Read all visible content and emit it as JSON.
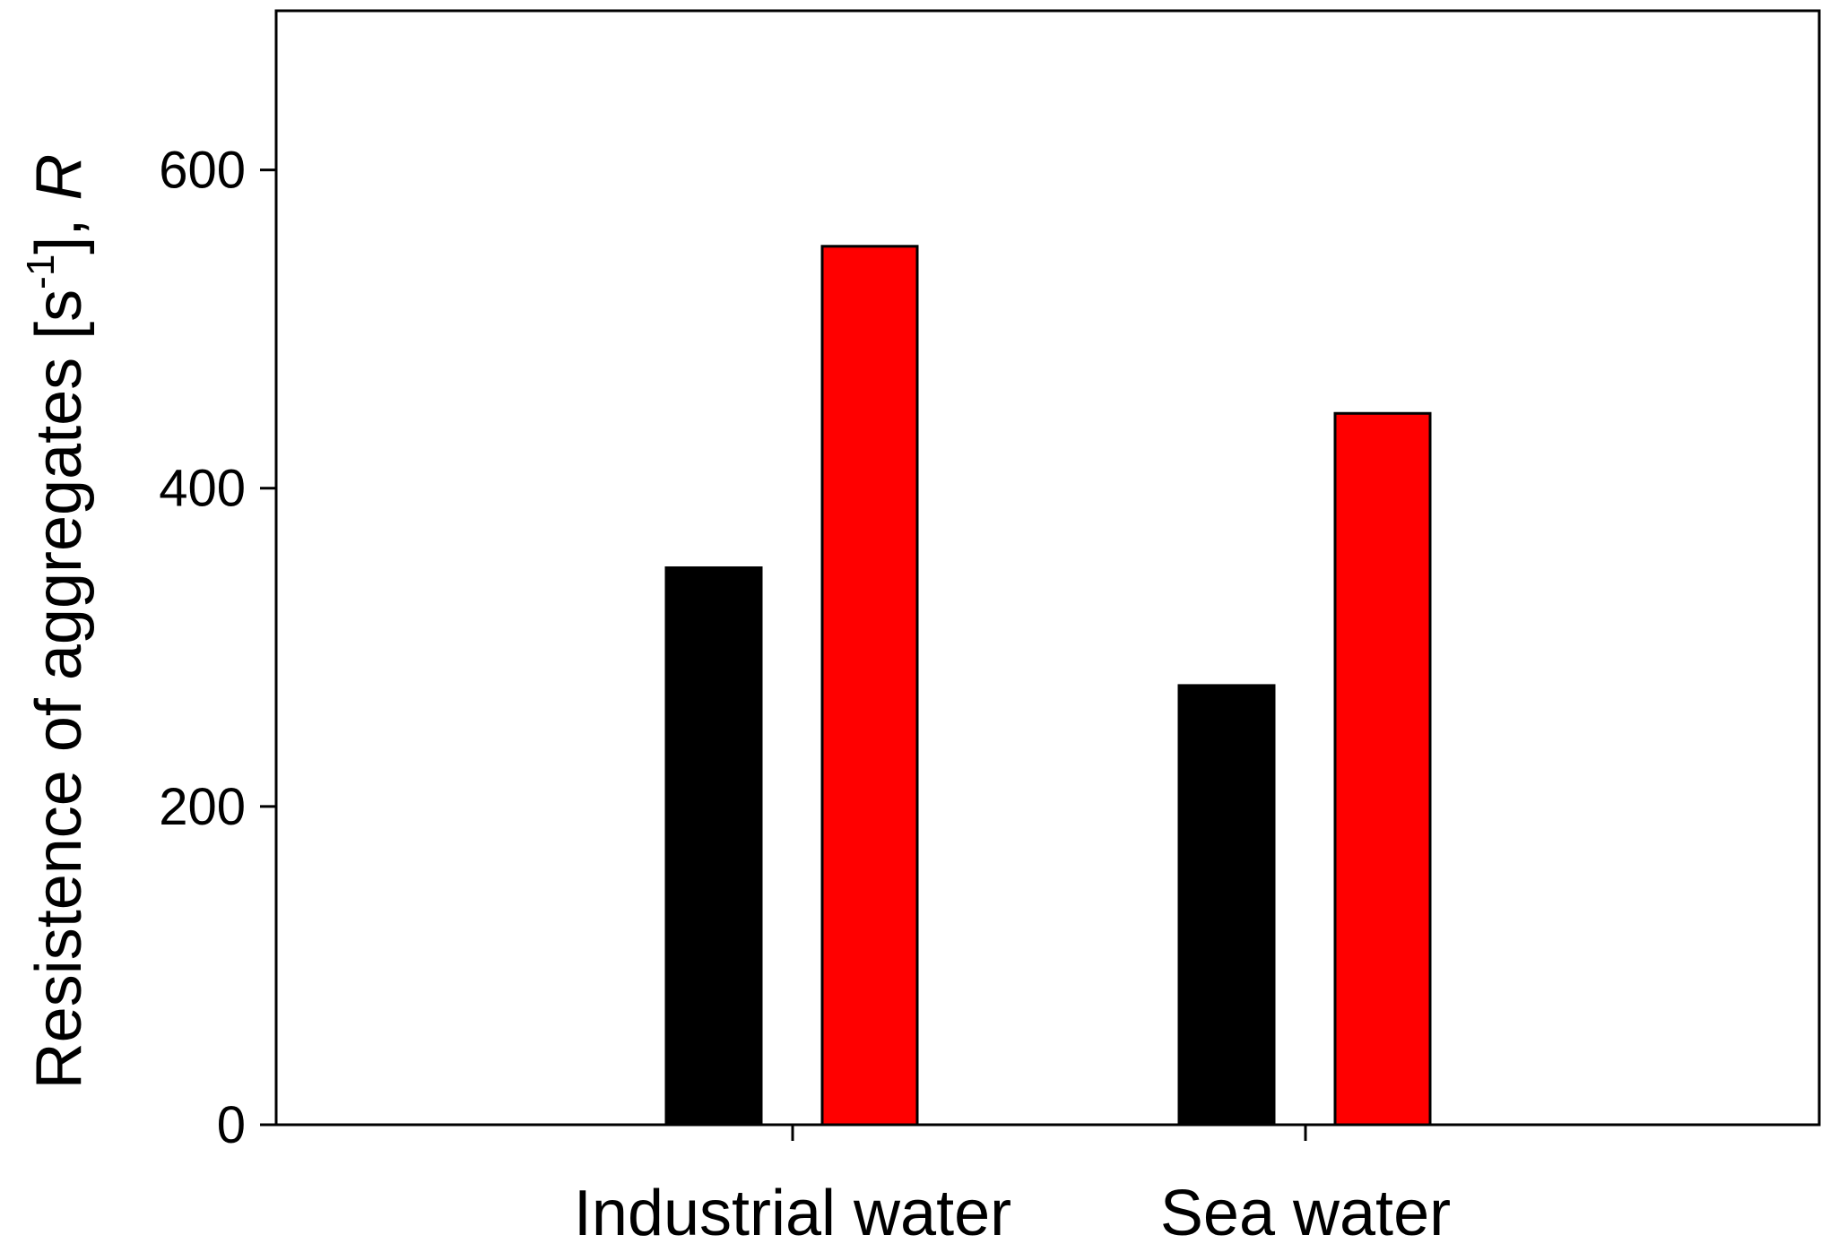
{
  "chart_data": {
    "type": "bar",
    "title": "",
    "categories": [
      "Industrial water",
      "Sea water"
    ],
    "series": [
      {
        "values": [
          350,
          276
        ],
        "color": "#000000"
      },
      {
        "values": [
          552,
          447
        ],
        "color": "#ff0000"
      }
    ],
    "ylabel": {
      "main": "Resistence of aggregates [s",
      "sup": "-1",
      "tail": "], ",
      "italic": "R"
    },
    "xlabel": "",
    "ylim": [
      0,
      700
    ],
    "yticks": [
      0,
      200,
      400,
      600
    ],
    "ytick_labels": [
      "0",
      "200",
      "400",
      "600"
    ],
    "grid": false,
    "legend": "none"
  }
}
